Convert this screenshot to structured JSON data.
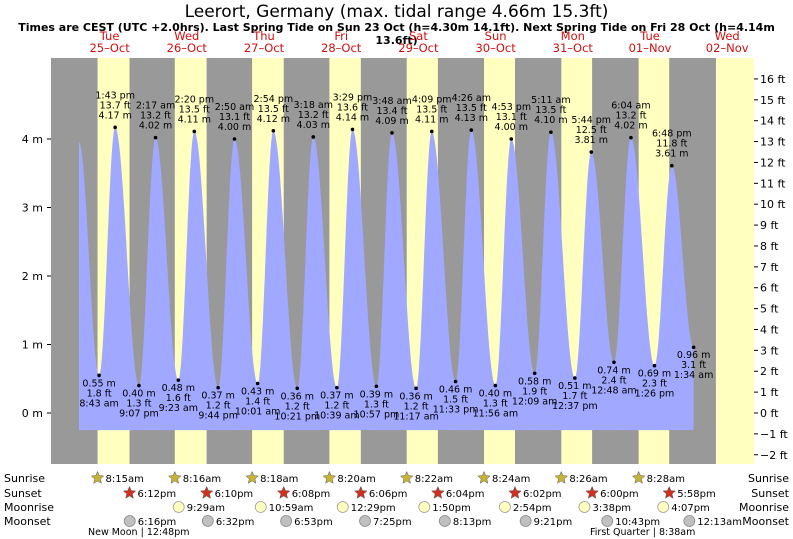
{
  "title": "Leerort, Germany (max. tidal range 4.66m 15.3ft)",
  "subtitle": "Times are CEST (UTC +2.0hrs). Last Spring Tide on Sun 23 Oct (h=4.30m 14.1ft). Next Spring Tide on Fri 28 Oct (h=4.14m 13.6ft)",
  "colors": {
    "night": "#999999",
    "day": "#ffffc0",
    "water": "#a0a8ff",
    "sun_star": "#c8b432",
    "sunset_star": "#d03020",
    "moonrise": "#ffffc0",
    "moonset": "#c0c0c0"
  },
  "chart_data": {
    "type": "area",
    "ylabel_left_unit": "m",
    "ylabel_right_unit": "ft",
    "y_ticks_m": [
      "0 m",
      "1 m",
      "2 m",
      "3 m",
      "4 m"
    ],
    "y_ticks_ft": [
      "−2 ft",
      "−1 ft",
      "0 ft",
      "1 ft",
      "2 ft",
      "3 ft",
      "4 ft",
      "5 ft",
      "6 ft",
      "7 ft",
      "8 ft",
      "9 ft",
      "10 ft",
      "11 ft",
      "12 ft",
      "13 ft",
      "14 ft",
      "15 ft",
      "16 ft"
    ],
    "days": [
      {
        "dow": "Tue",
        "date": "25–Oct"
      },
      {
        "dow": "Wed",
        "date": "26–Oct"
      },
      {
        "dow": "Thu",
        "date": "27–Oct"
      },
      {
        "dow": "Fri",
        "date": "28–Oct"
      },
      {
        "dow": "Sat",
        "date": "29–Oct"
      },
      {
        "dow": "Sun",
        "date": "30–Oct"
      },
      {
        "dow": "Mon",
        "date": "31–Oct"
      },
      {
        "dow": "Tue",
        "date": "01–Nov"
      },
      {
        "dow": "Wed",
        "date": "02–Nov"
      }
    ],
    "tides": [
      {
        "type": "low",
        "t": 0.364,
        "h": 0.55,
        "time": "8:43 am",
        "m": "0.55 m",
        "ft": "1.8 ft"
      },
      {
        "type": "high",
        "t": 0.572,
        "h": 4.17,
        "time": "1:43 pm",
        "m": "4.17 m",
        "ft": "13.7 ft"
      },
      {
        "type": "low",
        "t": 0.88,
        "h": 0.4,
        "time": "9:07 pm",
        "m": "0.40 m",
        "ft": "1.3 ft"
      },
      {
        "type": "high",
        "t": 1.095,
        "h": 4.02,
        "time": "2:17 am",
        "m": "4.02 m",
        "ft": "13.2 ft"
      },
      {
        "type": "low",
        "t": 1.39,
        "h": 0.48,
        "time": "9:23 am",
        "m": "0.48 m",
        "ft": "1.6 ft"
      },
      {
        "type": "high",
        "t": 1.597,
        "h": 4.11,
        "time": "2:20 pm",
        "m": "4.11 m",
        "ft": "13.5 ft"
      },
      {
        "type": "low",
        "t": 1.906,
        "h": 0.37,
        "time": "9:44 pm",
        "m": "0.37 m",
        "ft": "1.2 ft"
      },
      {
        "type": "high",
        "t": 2.118,
        "h": 4.0,
        "time": "2:50 am",
        "m": "4.00 m",
        "ft": "13.1 ft"
      },
      {
        "type": "low",
        "t": 2.418,
        "h": 0.43,
        "time": "10:01 am",
        "m": "0.43 m",
        "ft": "1.4 ft"
      },
      {
        "type": "high",
        "t": 2.621,
        "h": 4.12,
        "time": "2:54 pm",
        "m": "4.12 m",
        "ft": "13.5 ft"
      },
      {
        "type": "low",
        "t": 2.931,
        "h": 0.36,
        "time": "10:21 pm",
        "m": "0.36 m",
        "ft": "1.2 ft"
      },
      {
        "type": "high",
        "t": 3.138,
        "h": 4.03,
        "time": "3:18 am",
        "m": "4.03 m",
        "ft": "13.2 ft"
      },
      {
        "type": "low",
        "t": 3.444,
        "h": 0.37,
        "time": "10:39 am",
        "m": "0.37 m",
        "ft": "1.2 ft"
      },
      {
        "type": "high",
        "t": 3.646,
        "h": 4.14,
        "time": "3:29 pm",
        "m": "4.14 m",
        "ft": "13.6 ft"
      },
      {
        "type": "low",
        "t": 3.956,
        "h": 0.39,
        "time": "10:57 pm",
        "m": "0.39 m",
        "ft": "1.3 ft"
      },
      {
        "type": "high",
        "t": 4.158,
        "h": 4.09,
        "time": "3:48 am",
        "m": "4.09 m",
        "ft": "13.4 ft"
      },
      {
        "type": "low",
        "t": 4.47,
        "h": 0.36,
        "time": "11:17 am",
        "m": "0.36 m",
        "ft": "1.2 ft"
      },
      {
        "type": "high",
        "t": 4.673,
        "h": 4.11,
        "time": "4:09 pm",
        "m": "4.11 m",
        "ft": "13.5 ft"
      },
      {
        "type": "low",
        "t": 4.982,
        "h": 0.46,
        "time": "11:33 pm",
        "m": "0.46 m",
        "ft": "1.5 ft"
      },
      {
        "type": "high",
        "t": 5.185,
        "h": 4.13,
        "time": "4:26 am",
        "m": "4.13 m",
        "ft": "13.5 ft"
      },
      {
        "type": "low",
        "t": 5.497,
        "h": 0.4,
        "time": "11:56 am",
        "m": "0.40 m",
        "ft": "1.3 ft"
      },
      {
        "type": "high",
        "t": 5.703,
        "h": 4.0,
        "time": "4:53 pm",
        "m": "4.00 m",
        "ft": "13.1 ft"
      },
      {
        "type": "low",
        "t": 6.006,
        "h": 0.58,
        "time": "12:09 am",
        "m": "0.58 m",
        "ft": "1.9 ft"
      },
      {
        "type": "high",
        "t": 6.216,
        "h": 4.1,
        "time": "5:11 am",
        "m": "4.10 m",
        "ft": "13.5 ft"
      },
      {
        "type": "low",
        "t": 6.526,
        "h": 0.51,
        "time": "12:37 pm",
        "m": "0.51 m",
        "ft": "1.7 ft"
      },
      {
        "type": "high",
        "t": 6.739,
        "h": 3.81,
        "time": "5:44 pm",
        "m": "3.81 m",
        "ft": "12.5 ft"
      },
      {
        "type": "low",
        "t": 7.033,
        "h": 0.74,
        "time": "12:48 am",
        "m": "0.74 m",
        "ft": "2.4 ft"
      },
      {
        "type": "high",
        "t": 7.253,
        "h": 4.02,
        "time": "6:04 am",
        "m": "4.02 m",
        "ft": "13.2 ft"
      },
      {
        "type": "low",
        "t": 7.558,
        "h": 0.69,
        "time": "1:26 pm",
        "m": "0.69 m",
        "ft": "2.3 ft"
      },
      {
        "type": "high",
        "t": 7.783,
        "h": 3.61,
        "time": "6:48 pm",
        "m": "3.61 m",
        "ft": "11.8 ft"
      },
      {
        "type": "low",
        "t": 8.065,
        "h": 0.96,
        "time": "1:34 am",
        "m": "0.96 m",
        "ft": "3.1 ft"
      }
    ],
    "sun_times": [
      {
        "rise": "8:15am",
        "set": "6:12pm"
      },
      {
        "rise": "8:16am",
        "set": "6:10pm"
      },
      {
        "rise": "8:18am",
        "set": "6:08pm"
      },
      {
        "rise": "8:20am",
        "set": "6:06pm"
      },
      {
        "rise": "8:22am",
        "set": "6:04pm"
      },
      {
        "rise": "8:24am",
        "set": "6:02pm"
      },
      {
        "rise": "8:26am",
        "set": "6:00pm"
      },
      {
        "rise": "8:28am",
        "set": "5:58pm"
      }
    ],
    "moonrise": [
      "9:29am",
      "10:59am",
      "12:29pm",
      "1:50pm",
      "2:54pm",
      "3:38pm",
      "4:07pm"
    ],
    "moonset": [
      "6:16pm",
      "6:32pm",
      "6:53pm",
      "7:25pm",
      "8:13pm",
      "9:21pm",
      "10:43pm",
      "12:13am"
    ],
    "row_labels": {
      "sunrise": "Sunrise",
      "sunset": "Sunset",
      "moonrise": "Moonrise",
      "moonset": "Moonset"
    }
  },
  "moon_phases": {
    "new_moon": "New Moon | 12:48pm",
    "first_quarter": "First Quarter | 8:38am"
  }
}
